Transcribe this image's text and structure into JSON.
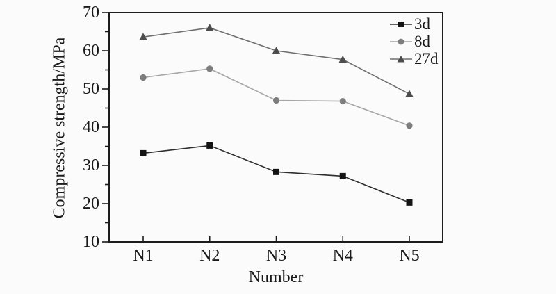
{
  "figure": {
    "background": "#fbfbfb",
    "frame_color": "#1c1c1c",
    "text_color": "#1a1a1a"
  },
  "chart_data": {
    "type": "line",
    "title": "",
    "xlabel": "Number",
    "ylabel": "Compressive strength/MPa",
    "categories": [
      "N1",
      "N2",
      "N3",
      "N4",
      "N5"
    ],
    "ylim": [
      10,
      70
    ],
    "y_major_step": 10,
    "y_minor_step": 5,
    "grid": false,
    "legend_position": "top-right-inside",
    "series": [
      {
        "name": "3d",
        "marker": "square",
        "marker_color": "#141414",
        "line_color": "#2e2e2e",
        "values": [
          33.2,
          35.2,
          28.3,
          27.2,
          20.3
        ]
      },
      {
        "name": "8d",
        "marker": "circle",
        "marker_color": "#7d7d7d",
        "line_color": "#a6a6a6",
        "values": [
          53.0,
          55.3,
          47.0,
          46.8,
          40.4
        ]
      },
      {
        "name": "27d",
        "marker": "triangle",
        "marker_color": "#4d4d4d",
        "line_color": "#6f6f6f",
        "values": [
          63.6,
          66.0,
          60.0,
          57.7,
          48.7
        ]
      }
    ]
  }
}
